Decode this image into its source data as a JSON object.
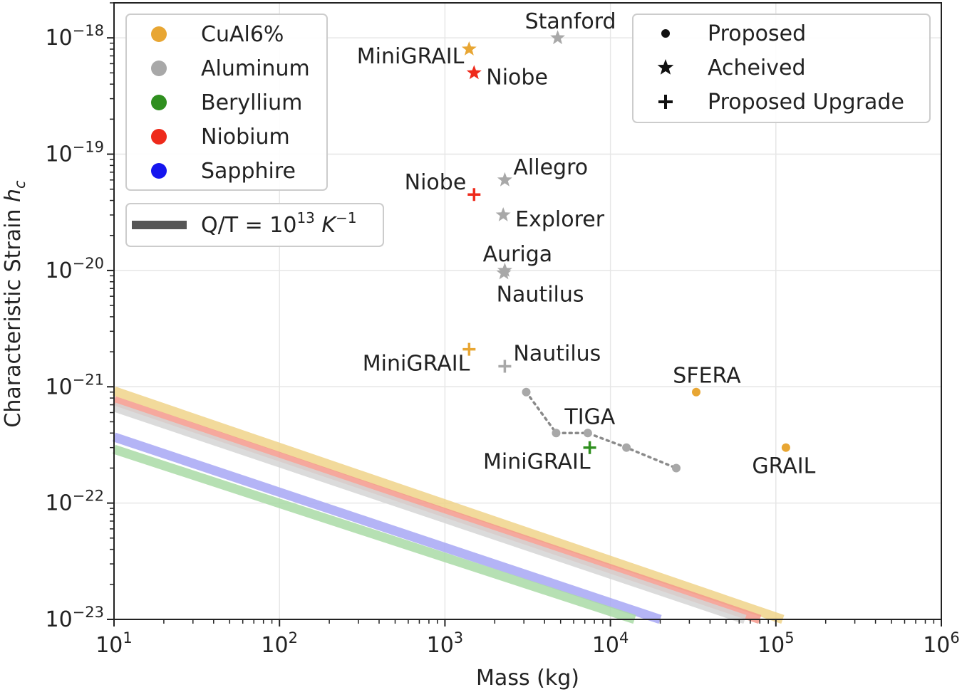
{
  "chart_data": {
    "type": "scatter",
    "title": "",
    "xlabel": "Mass (kg)",
    "ylabel": "Characteristic Strain",
    "ylabel_symbol": "h",
    "ylabel_subscript": "c",
    "x_scale": "log",
    "y_scale": "log",
    "xlim": [
      10,
      1000000
    ],
    "ylim": [
      1e-23,
      2e-18
    ],
    "grid": true,
    "x_ticks": [
      {
        "value": 10,
        "base": "10",
        "exp": "1"
      },
      {
        "value": 100,
        "base": "10",
        "exp": "2"
      },
      {
        "value": 1000,
        "base": "10",
        "exp": "3"
      },
      {
        "value": 10000,
        "base": "10",
        "exp": "4"
      },
      {
        "value": 100000,
        "base": "10",
        "exp": "5"
      },
      {
        "value": 1000000,
        "base": "10",
        "exp": "6"
      }
    ],
    "y_ticks": [
      {
        "value": 1e-18,
        "base": "10",
        "exp": "−18"
      },
      {
        "value": 1e-19,
        "base": "10",
        "exp": "−19"
      },
      {
        "value": 1e-20,
        "base": "10",
        "exp": "−20"
      },
      {
        "value": 1e-21,
        "base": "10",
        "exp": "−21"
      },
      {
        "value": 1e-22,
        "base": "10",
        "exp": "−22"
      },
      {
        "value": 1e-23,
        "base": "10",
        "exp": "−23"
      }
    ],
    "materials": [
      {
        "name": "CuAl6%",
        "color": "#e8a633"
      },
      {
        "name": "Aluminum",
        "color": "#a8a8a8"
      },
      {
        "name": "Beryllium",
        "color": "#2f8f1f"
      },
      {
        "name": "Niobium",
        "color": "#ee2a1b"
      },
      {
        "name": "Sapphire",
        "color": "#1515ee"
      }
    ],
    "marker_types": [
      {
        "label": "Proposed",
        "marker": "dot"
      },
      {
        "label": "Acheived",
        "marker": "star"
      },
      {
        "label": "Proposed Upgrade",
        "marker": "plus"
      }
    ],
    "line_legend": {
      "text": "Q/T = 10",
      "exp": "13",
      "unit": "K",
      "unit_exp": "−1",
      "color": "#555555"
    },
    "sensitivity_lines": [
      {
        "material": "CuAl6%",
        "color": "#f0d48a",
        "x": [
          10,
          110000
        ],
        "y": [
          9.2e-22,
          1e-23
        ]
      },
      {
        "material": "Niobium",
        "color": "#f59a8c",
        "x": [
          10,
          80000
        ],
        "y": [
          7.6e-22,
          1e-23
        ]
      },
      {
        "material": "Aluminum",
        "color": "#d5d5d5",
        "x": [
          10,
          65000
        ],
        "y": [
          6.7e-22,
          1e-23
        ]
      },
      {
        "material": "Sapphire",
        "color": "#a8a8f5",
        "x": [
          10,
          20000
        ],
        "y": [
          3.7e-22,
          1e-23
        ]
      },
      {
        "material": "Beryllium",
        "color": "#aadba6",
        "x": [
          10,
          14000
        ],
        "y": [
          2.9e-22,
          1e-23
        ]
      }
    ],
    "points": [
      {
        "label": "Stanford",
        "x": 4800,
        "y": 1e-18,
        "material": "Aluminum",
        "marker": "star",
        "anchor": "top"
      },
      {
        "label": "MiniGRAIL",
        "x": 1400,
        "y": 8e-19,
        "material": "CuAl6%",
        "marker": "star",
        "anchor": "left"
      },
      {
        "label": "Niobe",
        "x": 1500,
        "y": 5e-19,
        "material": "Niobium",
        "marker": "star",
        "anchor": "right"
      },
      {
        "label": "Allegro",
        "x": 2300,
        "y": 6e-20,
        "material": "Aluminum",
        "marker": "star",
        "anchor": "upper-right"
      },
      {
        "label": "Niobe",
        "x": 1500,
        "y": 4.5e-20,
        "material": "Niobium",
        "marker": "plus",
        "anchor": "upper-left"
      },
      {
        "label": "Explorer",
        "x": 2250,
        "y": 3e-20,
        "material": "Aluminum",
        "marker": "star",
        "anchor": "right"
      },
      {
        "label": "Auriga",
        "x": 2300,
        "y": 1e-20,
        "material": "Aluminum",
        "marker": "star",
        "anchor": "top"
      },
      {
        "label": "Nautilus",
        "x": 2270,
        "y": 9.5e-21,
        "material": "Aluminum",
        "marker": "star",
        "anchor": "bottom"
      },
      {
        "label": "MiniGRAIL",
        "x": 1400,
        "y": 2.1e-21,
        "material": "CuAl6%",
        "marker": "plus",
        "anchor": "lower-left"
      },
      {
        "label": "Nautilus",
        "x": 2300,
        "y": 1.5e-21,
        "material": "Aluminum",
        "marker": "plus",
        "anchor": "upper-right"
      },
      {
        "label": "SFERA",
        "x": 33000,
        "y": 9e-22,
        "material": "CuAl6%",
        "marker": "dot",
        "anchor": "top"
      },
      {
        "label": "GRAIL",
        "x": 115000,
        "y": 3e-22,
        "material": "CuAl6%",
        "marker": "dot",
        "anchor": "bottom"
      },
      {
        "label": "MiniGRAIL",
        "x": 7500,
        "y": 3e-22,
        "material": "Beryllium",
        "marker": "plus",
        "anchor": "lower-left"
      }
    ],
    "tiga": {
      "label": "TIGA",
      "material": "Aluminum",
      "marker": "dot",
      "x": [
        3100,
        4700,
        7300,
        12500,
        25000
      ],
      "y": [
        9e-22,
        4e-22,
        4e-22,
        3e-22,
        2e-22
      ]
    }
  }
}
